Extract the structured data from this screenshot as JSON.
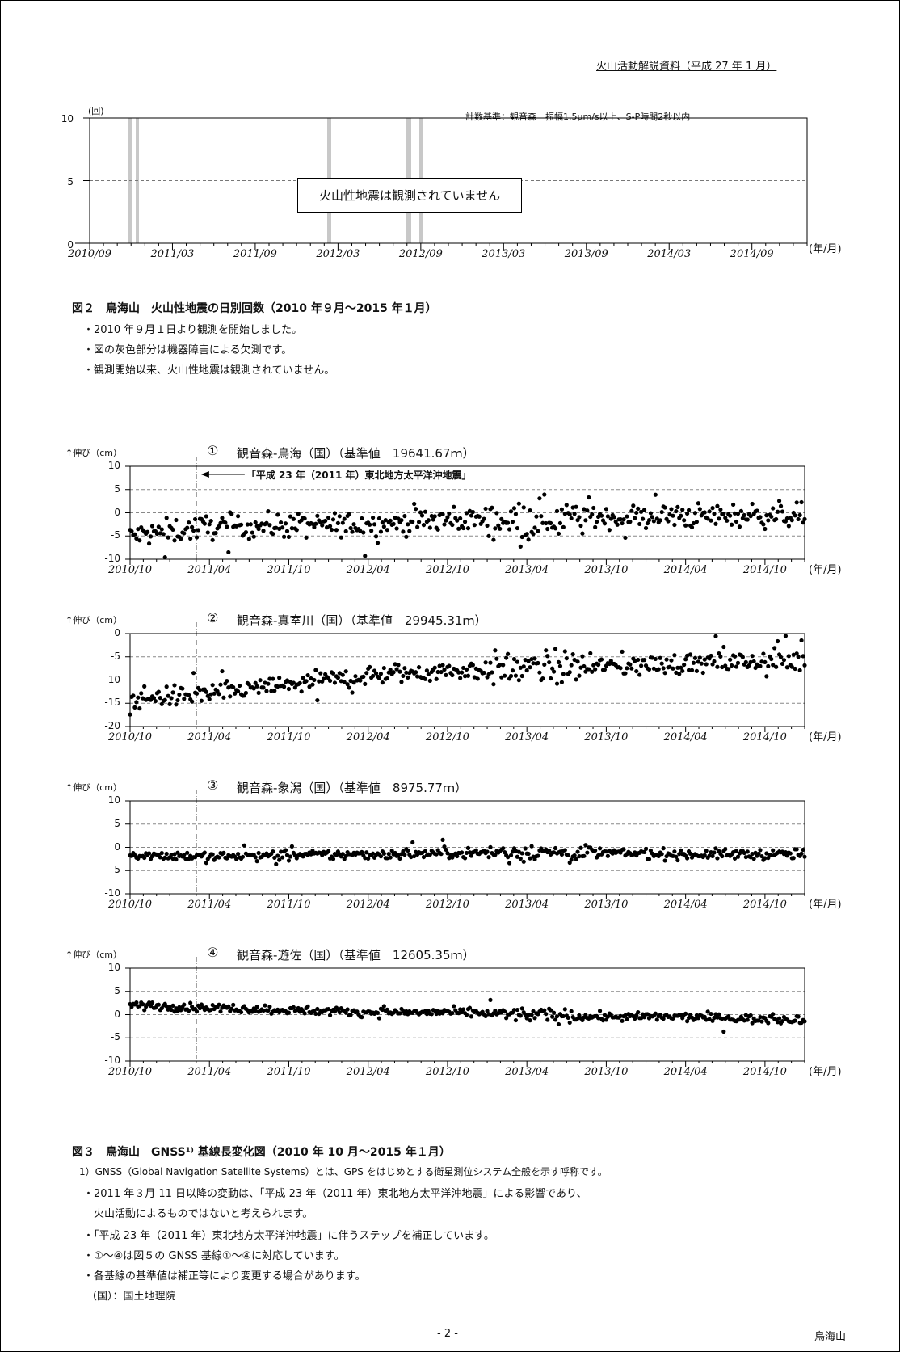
{
  "header": {
    "doc_title": "火山活動解説資料（平成 27 年 1 月）"
  },
  "fig2": {
    "y_unit": "(回)",
    "criteria": "計数基準：観音森　振幅1.5μm/s以上、S-P時間2秒以内",
    "notice": "火山性地震は観測されていません",
    "axis_unit": "(年/月)",
    "y_ticks": [
      "10",
      "5",
      "0"
    ],
    "x_ticks": [
      "2010/09",
      "2011/03",
      "2011/09",
      "2012/03",
      "2012/09",
      "2013/03",
      "2013/09",
      "2014/03",
      "2014/09"
    ],
    "caption": "図２　鳥海山　火山性地震の日別回数（2010 年９月～2015 年１月）",
    "notes": [
      "・2010 年９月１日より観測を開始しました。",
      "・図の灰色部分は機器障害による欠測です。",
      "・観測開始以来、火山性地震は観測されていません。"
    ]
  },
  "chart_data": [
    {
      "type": "bar",
      "title": "",
      "xlabel": "(年/月)",
      "ylabel": "(回)",
      "ylim": [
        0,
        10
      ],
      "x_range": [
        "2010/09",
        "2015/01"
      ],
      "daily_counts_all": 0,
      "missing_periods": [
        "2010/12",
        "2011/01",
        "2012/03",
        "2012/10",
        "2012/11"
      ]
    },
    {
      "type": "scatter",
      "title": "① 観音森-鳥海（国）（基準値　19641.67ｍ）",
      "ylabel": "伸び（cm）",
      "ylim": [
        -10,
        10
      ],
      "trend": [
        [
          "2010/10",
          -5
        ],
        [
          "2011/04",
          -3
        ],
        [
          "2012/04",
          -2.5
        ],
        [
          "2012/10",
          -1.5
        ],
        [
          "2013/10",
          -1
        ],
        [
          "2014/10",
          -0.5
        ],
        [
          "2015/01",
          -0.5
        ]
      ]
    },
    {
      "type": "scatter",
      "title": "② 観音森-真室川（国）（基準値　29945.31ｍ）",
      "ylabel": "伸び（cm）",
      "ylim": [
        -20,
        0
      ],
      "trend": [
        [
          "2010/10",
          -14
        ],
        [
          "2011/04",
          -13
        ],
        [
          "2011/10",
          -11
        ],
        [
          "2012/04",
          -9
        ],
        [
          "2012/10",
          -8
        ],
        [
          "2013/04",
          -7.5
        ],
        [
          "2013/10",
          -7
        ],
        [
          "2014/04",
          -6.5
        ],
        [
          "2014/10",
          -6
        ],
        [
          "2015/01",
          -6
        ]
      ]
    },
    {
      "type": "scatter",
      "title": "③ 観音森-象潟（国）（基準値　8975.77ｍ）",
      "ylabel": "伸び（cm）",
      "ylim": [
        -10,
        10
      ],
      "trend": [
        [
          "2010/10",
          -1.5
        ],
        [
          "2011/04",
          -2
        ],
        [
          "2012/04",
          -1.5
        ],
        [
          "2013/04",
          -1
        ],
        [
          "2014/04",
          -1.5
        ],
        [
          "2015/01",
          -1.5
        ]
      ]
    },
    {
      "type": "scatter",
      "title": "④ 観音森-遊佐（国）（基準値　12605.35ｍ）",
      "ylabel": "伸び（cm）",
      "ylim": [
        -10,
        10
      ],
      "trend": [
        [
          "2010/10",
          2
        ],
        [
          "2011/04",
          1.5
        ],
        [
          "2011/10",
          1
        ],
        [
          "2012/04",
          0.5
        ],
        [
          "2012/10",
          0.5
        ],
        [
          "2013/04",
          0
        ],
        [
          "2013/10",
          -0.5
        ],
        [
          "2014/04",
          -0.5
        ],
        [
          "2014/10",
          -1
        ],
        [
          "2015/01",
          -1
        ]
      ]
    }
  ],
  "fig3": {
    "y_unit": "↑伸び（cm）",
    "axis_unit": "(年/月)",
    "x_ticks": [
      "2010/10",
      "2011/04",
      "2011/10",
      "2012/04",
      "2012/10",
      "2013/04",
      "2013/10",
      "2014/04",
      "2014/10"
    ],
    "quake_label": "「平成 23 年（2011 年）東北地方太平洋沖地震」",
    "panels": [
      {
        "marker": "①",
        "title": "観音森-鳥海（国）（基準値　19641.67ｍ）",
        "y_ticks": [
          "10",
          "5",
          "0",
          "-5",
          "-10"
        ]
      },
      {
        "marker": "②",
        "title": "観音森-真室川（国）（基準値　29945.31ｍ）",
        "y_ticks": [
          "0",
          "-5",
          "-10",
          "-15",
          "-20"
        ]
      },
      {
        "marker": "③",
        "title": "観音森-象潟（国）（基準値　8975.77ｍ）",
        "y_ticks": [
          "10",
          "5",
          "0",
          "-5",
          "-10"
        ]
      },
      {
        "marker": "④",
        "title": "観音森-遊佐（国）（基準値　12605.35ｍ）",
        "y_ticks": [
          "10",
          "5",
          "0",
          "-5",
          "-10"
        ]
      }
    ],
    "caption": "図３　鳥海山　GNSS¹⁾ 基線長変化図（2010 年 10 月～2015 年１月）",
    "notes": [
      "1）GNSS（Global Navigation Satellite Systems）とは、GPS をはじめとする衛星測位システム全般を示す呼称です。",
      "・2011 年３月 11 日以降の変動は、「平成 23 年（2011 年）東北地方太平洋沖地震」による影響であり、",
      "　火山活動によるものではないと考えられます。",
      "・「平成 23 年（2011 年）東北地方太平洋沖地震」に伴うステップを補正しています。",
      "・①～④は図５の GNSS 基線①～④に対応しています。",
      "・各基線の基準値は補正等により変更する場合があります。",
      "（国）：国土地理院"
    ]
  },
  "footer": {
    "page_number": "- 2 -",
    "volcano": "鳥海山"
  }
}
